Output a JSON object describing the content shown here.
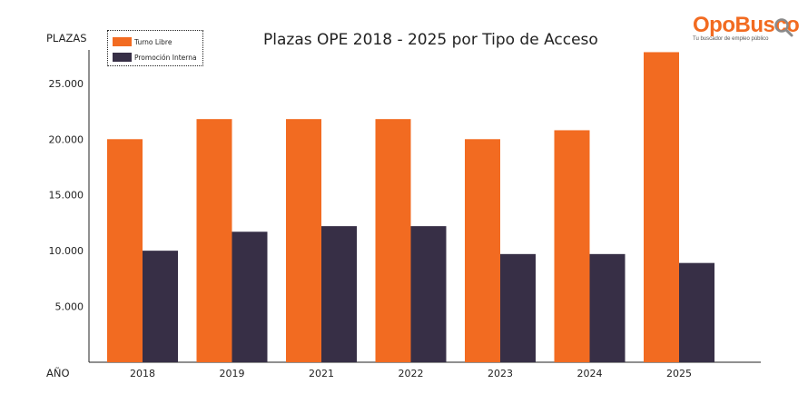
{
  "chart_data": {
    "type": "bar",
    "title": "Plazas OPE 2018 - 2025 por Tipo de Acceso",
    "ylabel": "PLAZAS",
    "xlabel": "AÑO",
    "categories": [
      "2018",
      "2019",
      "2021",
      "2022",
      "2023",
      "2024",
      "2025"
    ],
    "series": [
      {
        "name": "Turno Libre",
        "color": "#f26b21",
        "values": [
          20000,
          21800,
          21800,
          21800,
          20000,
          20800,
          27800
        ]
      },
      {
        "name": "Promoción Interna",
        "color": "#372f46",
        "values": [
          10000,
          11700,
          12200,
          12200,
          9700,
          9700,
          8900
        ]
      }
    ],
    "ylim": [
      0,
      28000
    ],
    "yticks": [
      5000,
      10000,
      15000,
      20000,
      25000
    ],
    "ytick_labels": [
      "5.000",
      "10.000",
      "15.000",
      "20.000",
      "25.000"
    ],
    "grid": false,
    "legend_position": "top-left"
  },
  "logo": {
    "name": "OpoBusco",
    "tagline": "Tu buscador de empleo público",
    "color": "#f26b21",
    "icon": "magnifier-icon"
  }
}
